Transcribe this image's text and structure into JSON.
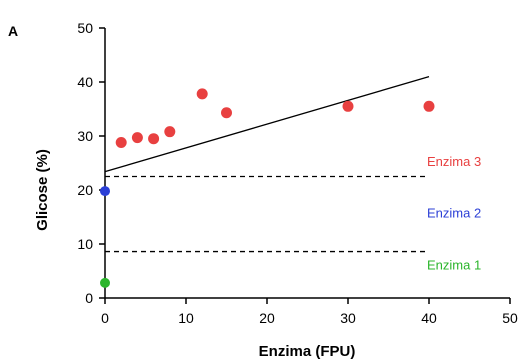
{
  "chart_data": {
    "type": "scatter",
    "panel_label": "A",
    "xlabel": "Enzima (FPU)",
    "ylabel": "Glicose (%)",
    "xlim": [
      0,
      50
    ],
    "ylim": [
      0,
      50
    ],
    "x_ticks": [
      0,
      10,
      20,
      30,
      40,
      50
    ],
    "y_ticks": [
      0,
      10,
      20,
      30,
      40,
      50
    ],
    "grid": false,
    "series": [
      {
        "color": "#e84040",
        "points": [
          {
            "x": 2,
            "y": 28.8
          },
          {
            "x": 4,
            "y": 29.7
          },
          {
            "x": 6,
            "y": 29.5
          },
          {
            "x": 8,
            "y": 30.8
          },
          {
            "x": 12,
            "y": 37.8
          },
          {
            "x": 15,
            "y": 34.3
          },
          {
            "x": 30,
            "y": 35.5
          },
          {
            "x": 40,
            "y": 35.5
          }
        ]
      }
    ],
    "reference_points": [
      {
        "x": 0,
        "y": 19.8,
        "color": "#2b3fd6"
      },
      {
        "x": 0,
        "y": 2.8,
        "color": "#2bb52b"
      }
    ],
    "trend_line": {
      "x1": 0,
      "y1": 23.4,
      "x2": 40,
      "y2": 41.0,
      "color": "#000000"
    },
    "h_lines": [
      {
        "y": 22.5,
        "x1": 0,
        "x2": 40,
        "style": "dashed"
      },
      {
        "y": 8.6,
        "x1": 0,
        "x2": 40,
        "style": "dashed"
      }
    ],
    "annotations": [
      {
        "text": "Enzima 3",
        "color": "#e84040",
        "x": 40,
        "y": 25.4
      },
      {
        "text": "Enzima 2",
        "color": "#2b3fd6",
        "x": 40,
        "y": 15.8
      },
      {
        "text": "Enzima 1",
        "color": "#2bb52b",
        "x": 40,
        "y": 6.2
      }
    ]
  }
}
